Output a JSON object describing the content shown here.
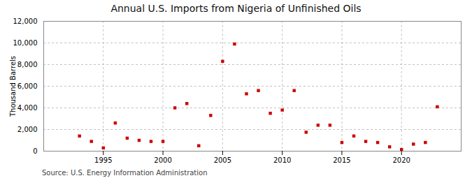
{
  "chart_data": {
    "type": "scatter",
    "title": "Annual U.S. Imports from Nigeria of Unfinished Oils",
    "ylabel": "Thousand Barrels",
    "source": "Source: U.S. Energy Information Administration",
    "x": [
      1993,
      1994,
      1995,
      1996,
      1997,
      1998,
      1999,
      2000,
      2001,
      2002,
      2003,
      2004,
      2005,
      2006,
      2007,
      2008,
      2009,
      2010,
      2011,
      2012,
      2013,
      2014,
      2015,
      2016,
      2017,
      2018,
      2019,
      2020,
      2021,
      2022,
      2023
    ],
    "values": [
      1400,
      900,
      300,
      2600,
      1200,
      1000,
      900,
      900,
      4000,
      4400,
      500,
      3300,
      8300,
      9900,
      5300,
      5600,
      3500,
      3800,
      5600,
      1750,
      2400,
      2400,
      800,
      1400,
      900,
      800,
      400,
      150,
      650,
      800,
      4100
    ],
    "color": "#cc0000",
    "marker": "square",
    "xlim": [
      1990,
      2025
    ],
    "xticks": [
      1995,
      2000,
      2005,
      2010,
      2015,
      2020
    ],
    "ylim": [
      0,
      12000
    ],
    "yticks": [
      0,
      {
        "value": 2000,
        "label": "2,000"
      },
      {
        "value": 4000,
        "label": "4,000"
      },
      {
        "value": 6000,
        "label": "6,000"
      },
      {
        "value": 8000,
        "label": "8,000"
      },
      {
        "value": 10000,
        "label": "10,000"
      },
      {
        "value": 12000,
        "label": "12,000"
      }
    ],
    "grid": true
  }
}
